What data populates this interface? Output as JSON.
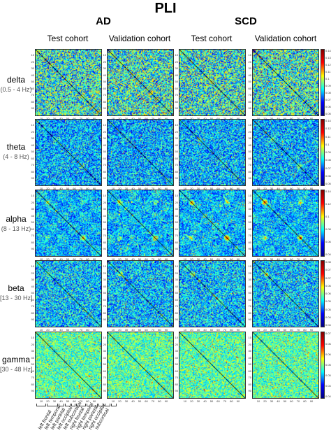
{
  "title": "PLI",
  "groups": [
    {
      "label": "AD"
    },
    {
      "label": "SCD"
    }
  ],
  "columns": [
    {
      "label": "Test cohort"
    },
    {
      "label": "Validation cohort"
    },
    {
      "label": "Test cohort"
    },
    {
      "label": "Validation cohort"
    }
  ],
  "bands": [
    {
      "name": "delta",
      "freq": "(0.5 - 4 Hz)",
      "colorbar_ticks": [
        "0.14",
        "0.13",
        "0.12",
        "0.11",
        "0.1",
        "0.09",
        "0.08",
        "0.07",
        "0.06",
        "0.05"
      ]
    },
    {
      "name": "theta",
      "freq": "(4 - 8 Hz)",
      "colorbar_ticks": [
        "0.14",
        "0.12",
        "0.11",
        "0.1",
        "0.09",
        "0.08",
        "0.07",
        "0.06",
        "0.05"
      ]
    },
    {
      "name": "alpha",
      "freq": "(8 - 13 Hz)",
      "colorbar_ticks": [
        "0.14",
        "0.12",
        "0.1",
        "0.08",
        "0.06",
        "0.04"
      ]
    },
    {
      "name": "beta",
      "freq": "[13 - 30 Hz]",
      "colorbar_ticks": [
        "0.08",
        "0.075",
        "0.07",
        "0.065",
        "0.06",
        "0.055",
        "0.05",
        "0.045",
        "0.04"
      ]
    },
    {
      "name": "gamma",
      "freq": "[30 - 48 Hz]",
      "colorbar_ticks": [
        "0.07",
        "0.065",
        "0.06",
        "0.055",
        "0.05",
        "0.045",
        "0.04"
      ]
    }
  ],
  "axis_ticks": [
    "10",
    "20",
    "30",
    "40",
    "50",
    "60",
    "70",
    "80",
    "90"
  ],
  "regions": [
    "left frontal",
    "left temporal",
    "left parietal",
    "left occipital",
    "left subcortical",
    "right frontal",
    "right temporal",
    "right parietal",
    "right occipital",
    "subcortical"
  ],
  "colors": {
    "high": "#7f0000",
    "mid": "#ffff00",
    "low": "#00007f",
    "diagonal": "#000000"
  }
}
